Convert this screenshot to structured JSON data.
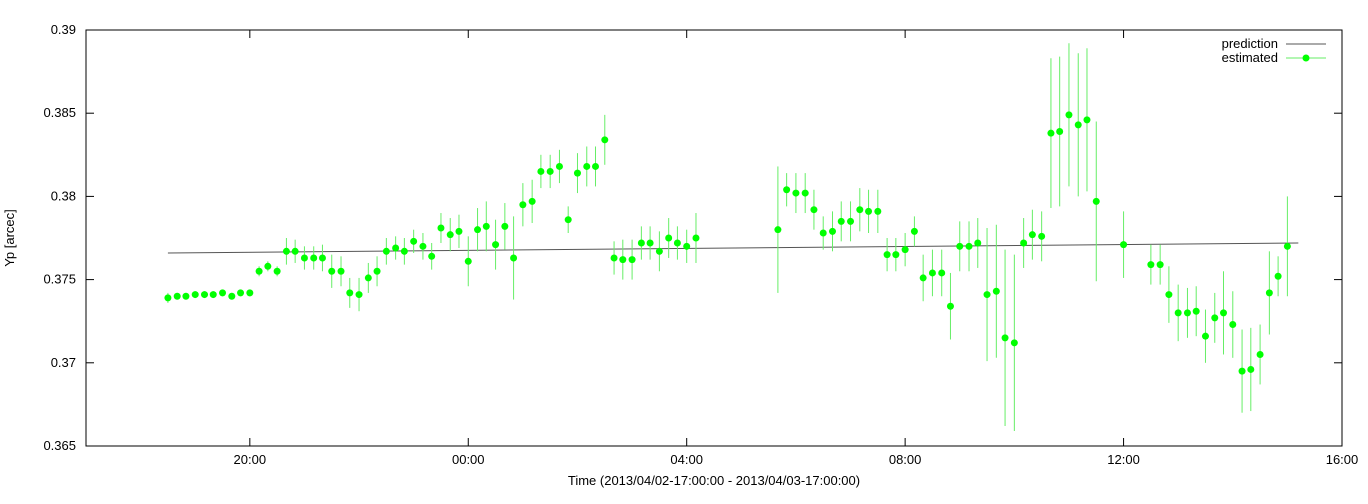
{
  "chart_data": {
    "type": "scatter",
    "xlabel": "Time (2013/04/02-17:00:00 - 2013/04/03-17:00:00)",
    "ylabel": "Yp [arcec]",
    "x_unit": "hour_of_day_continuous",
    "xlim": [
      17.0,
      40.0
    ],
    "ylim": [
      0.365,
      0.39
    ],
    "x_ticks": [
      {
        "value": 20,
        "label": "20:00"
      },
      {
        "value": 24,
        "label": "00:00"
      },
      {
        "value": 28,
        "label": "04:00"
      },
      {
        "value": 32,
        "label": "08:00"
      },
      {
        "value": 36,
        "label": "12:00"
      },
      {
        "value": 40,
        "label": "16:00"
      }
    ],
    "y_ticks": [
      {
        "value": 0.365,
        "label": "0.365"
      },
      {
        "value": 0.37,
        "label": "0.37"
      },
      {
        "value": 0.375,
        "label": "0.375"
      },
      {
        "value": 0.38,
        "label": "0.38"
      },
      {
        "value": 0.385,
        "label": "0.385"
      },
      {
        "value": 0.39,
        "label": "0.39"
      }
    ],
    "legend_position": "top-right",
    "grid": false,
    "series": [
      {
        "name": "prediction",
        "style": "line",
        "color": "#888888",
        "points": [
          [
            18.5,
            0.3766
          ],
          [
            39.2,
            0.3772
          ]
        ]
      },
      {
        "name": "estimated",
        "style": "points_errorbars",
        "color": "#00ff00",
        "points": [
          [
            18.5,
            0.3739,
            0.0003
          ],
          [
            18.67,
            0.374,
            0.0002
          ],
          [
            18.83,
            0.374,
            0.0002
          ],
          [
            19.0,
            0.3741,
            0.0002
          ],
          [
            19.17,
            0.3741,
            0.0002
          ],
          [
            19.33,
            0.3741,
            0.0002
          ],
          [
            19.5,
            0.3742,
            0.0002
          ],
          [
            19.67,
            0.374,
            0.0002
          ],
          [
            19.83,
            0.3742,
            0.0002
          ],
          [
            20.0,
            0.3742,
            0.0002
          ],
          [
            20.17,
            0.3755,
            0.0003
          ],
          [
            20.33,
            0.3758,
            0.0003
          ],
          [
            20.5,
            0.3755,
            0.0003
          ],
          [
            20.67,
            0.3767,
            0.0008
          ],
          [
            20.83,
            0.3767,
            0.0007
          ],
          [
            21.0,
            0.3763,
            0.0007
          ],
          [
            21.17,
            0.3763,
            0.0007
          ],
          [
            21.33,
            0.3763,
            0.0008
          ],
          [
            21.5,
            0.3755,
            0.001
          ],
          [
            21.67,
            0.3755,
            0.0009
          ],
          [
            21.83,
            0.3742,
            0.0009
          ],
          [
            22.0,
            0.3741,
            0.001
          ],
          [
            22.17,
            0.3751,
            0.0009
          ],
          [
            22.33,
            0.3755,
            0.0009
          ],
          [
            22.5,
            0.3767,
            0.0008
          ],
          [
            22.67,
            0.3769,
            0.0007
          ],
          [
            22.83,
            0.3767,
            0.0008
          ],
          [
            23.0,
            0.3773,
            0.0007
          ],
          [
            23.17,
            0.377,
            0.0008
          ],
          [
            23.33,
            0.3764,
            0.0008
          ],
          [
            23.5,
            0.3781,
            0.0009
          ],
          [
            23.67,
            0.3777,
            0.001
          ],
          [
            23.83,
            0.3779,
            0.001
          ],
          [
            24.0,
            0.3761,
            0.0015
          ],
          [
            24.17,
            0.378,
            0.0013
          ],
          [
            24.33,
            0.3782,
            0.0015
          ],
          [
            24.5,
            0.3771,
            0.0015
          ],
          [
            24.67,
            0.3782,
            0.0014
          ],
          [
            24.83,
            0.3763,
            0.0025
          ],
          [
            25.0,
            0.3795,
            0.0013
          ],
          [
            25.17,
            0.3797,
            0.0013
          ],
          [
            25.33,
            0.3815,
            0.001
          ],
          [
            25.5,
            0.3815,
            0.001
          ],
          [
            25.67,
            0.3818,
            0.001
          ],
          [
            25.83,
            0.3786,
            0.0008
          ],
          [
            26.0,
            0.3814,
            0.0012
          ],
          [
            26.17,
            0.3818,
            0.0012
          ],
          [
            26.33,
            0.3818,
            0.0012
          ],
          [
            26.5,
            0.3834,
            0.0015
          ],
          [
            26.67,
            0.3763,
            0.001
          ],
          [
            26.83,
            0.3762,
            0.0012
          ],
          [
            27.0,
            0.3762,
            0.0012
          ],
          [
            27.17,
            0.3772,
            0.001
          ],
          [
            27.33,
            0.3772,
            0.001
          ],
          [
            27.5,
            0.3767,
            0.0012
          ],
          [
            27.67,
            0.3775,
            0.0012
          ],
          [
            27.83,
            0.3772,
            0.001
          ],
          [
            28.0,
            0.377,
            0.001
          ],
          [
            28.17,
            0.3775,
            0.0015
          ],
          [
            29.67,
            0.378,
            0.0038
          ],
          [
            29.83,
            0.3804,
            0.001
          ],
          [
            30.0,
            0.3802,
            0.0012
          ],
          [
            30.17,
            0.3802,
            0.0012
          ],
          [
            30.33,
            0.3792,
            0.0012
          ],
          [
            30.5,
            0.3778,
            0.001
          ],
          [
            30.67,
            0.3779,
            0.0012
          ],
          [
            30.83,
            0.3785,
            0.0012
          ],
          [
            31.0,
            0.3785,
            0.0012
          ],
          [
            31.17,
            0.3792,
            0.0013
          ],
          [
            31.33,
            0.3791,
            0.0013
          ],
          [
            31.5,
            0.3791,
            0.0013
          ],
          [
            31.67,
            0.3765,
            0.001
          ],
          [
            31.83,
            0.3765,
            0.001
          ],
          [
            32.0,
            0.3768,
            0.001
          ],
          [
            32.17,
            0.3779,
            0.0009
          ],
          [
            32.33,
            0.3751,
            0.0014
          ],
          [
            32.5,
            0.3754,
            0.0014
          ],
          [
            32.67,
            0.3754,
            0.0014
          ],
          [
            32.83,
            0.3734,
            0.002
          ],
          [
            33.0,
            0.377,
            0.0015
          ],
          [
            33.17,
            0.377,
            0.0015
          ],
          [
            33.33,
            0.3772,
            0.0015
          ],
          [
            33.5,
            0.3741,
            0.004
          ],
          [
            33.67,
            0.3743,
            0.004
          ],
          [
            33.83,
            0.3715,
            0.0053
          ],
          [
            34.0,
            0.3712,
            0.0053
          ],
          [
            34.17,
            0.3772,
            0.0015
          ],
          [
            34.33,
            0.3777,
            0.0015
          ],
          [
            34.5,
            0.3776,
            0.0015
          ],
          [
            34.67,
            0.3838,
            0.0045
          ],
          [
            34.83,
            0.3839,
            0.0045
          ],
          [
            35.0,
            0.3849,
            0.0043
          ],
          [
            35.17,
            0.3843,
            0.0043
          ],
          [
            35.33,
            0.3846,
            0.0043
          ],
          [
            35.5,
            0.3797,
            0.0048
          ],
          [
            36.0,
            0.3771,
            0.002
          ],
          [
            36.5,
            0.3759,
            0.0012
          ],
          [
            36.67,
            0.3759,
            0.0012
          ],
          [
            36.83,
            0.3741,
            0.0017
          ],
          [
            37.0,
            0.373,
            0.0017
          ],
          [
            37.17,
            0.373,
            0.0015
          ],
          [
            37.33,
            0.3731,
            0.0015
          ],
          [
            37.5,
            0.3716,
            0.0016
          ],
          [
            37.67,
            0.3727,
            0.0015
          ],
          [
            37.83,
            0.373,
            0.0025
          ],
          [
            38.0,
            0.3723,
            0.002
          ],
          [
            38.17,
            0.3695,
            0.0025
          ],
          [
            38.33,
            0.3696,
            0.0025
          ],
          [
            38.5,
            0.3705,
            0.0018
          ],
          [
            38.67,
            0.3742,
            0.0025
          ],
          [
            38.83,
            0.3752,
            0.0012
          ],
          [
            39.0,
            0.377,
            0.003
          ]
        ]
      }
    ]
  }
}
